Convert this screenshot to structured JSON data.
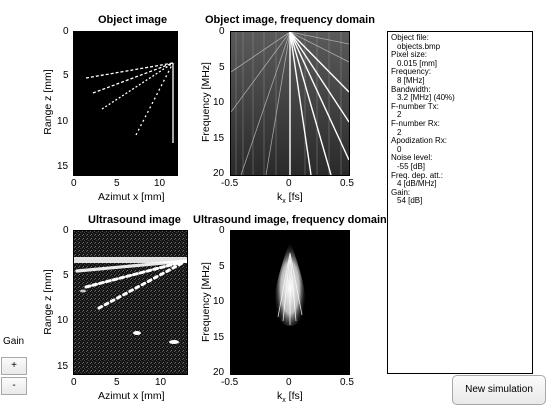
{
  "panels": {
    "object": {
      "title": "Object image",
      "xlabel": "Azimut x [mm]",
      "ylabel": "Range z [mm]",
      "xticks": [
        "0",
        "5",
        "10"
      ],
      "yticks": [
        "0",
        "5",
        "10",
        "15"
      ]
    },
    "object_freq": {
      "title": "Object image, frequency domain",
      "xlabel_main": "k",
      "xlabel_sub": "x",
      "xlabel_unit": " [fs]",
      "ylabel": "Frequency [MHz]",
      "xticks": [
        "-0.5",
        "0",
        "0.5"
      ],
      "yticks": [
        "0",
        "5",
        "10",
        "15",
        "20"
      ]
    },
    "ultrasound": {
      "title": "Ultrasound image",
      "xlabel": "Azimut x [mm]",
      "ylabel": "Range z [mm]",
      "xticks": [
        "0",
        "5",
        "10"
      ],
      "yticks": [
        "0",
        "5",
        "10",
        "15"
      ]
    },
    "ultrasound_freq": {
      "title": "Ultrasound image, frequency domain",
      "xlabel_main": "k",
      "xlabel_sub": "x",
      "xlabel_unit": " [fs]",
      "ylabel": "Frequency [MHz]",
      "xticks": [
        "-0.5",
        "0",
        "0.5"
      ],
      "yticks": [
        "0",
        "5",
        "10",
        "15",
        "20"
      ]
    }
  },
  "info": [
    {
      "key": "Object file:",
      "value": "objects.bmp"
    },
    {
      "key": "Pixel size:",
      "value": "0.015 [mm]"
    },
    {
      "key": "Frequency:",
      "value": "8 [MHz]"
    },
    {
      "key": "Bandwidth:",
      "value": "3.2 [MHz] (40%)"
    },
    {
      "key": "F-number Tx:",
      "value": "2"
    },
    {
      "key": "F-number Rx:",
      "value": "2"
    },
    {
      "key": "Apodization Rx:",
      "value": "0"
    },
    {
      "key": "Noise level:",
      "value": "-55 [dB]"
    },
    {
      "key": "Freq. dep. att.:",
      "value": "4 [dB/MHz]"
    },
    {
      "key": "Gain:",
      "value": "54 [dB]"
    }
  ],
  "gain": {
    "label": "Gain",
    "plus": "+",
    "minus": "-"
  },
  "new_simulation": "New simulation"
}
